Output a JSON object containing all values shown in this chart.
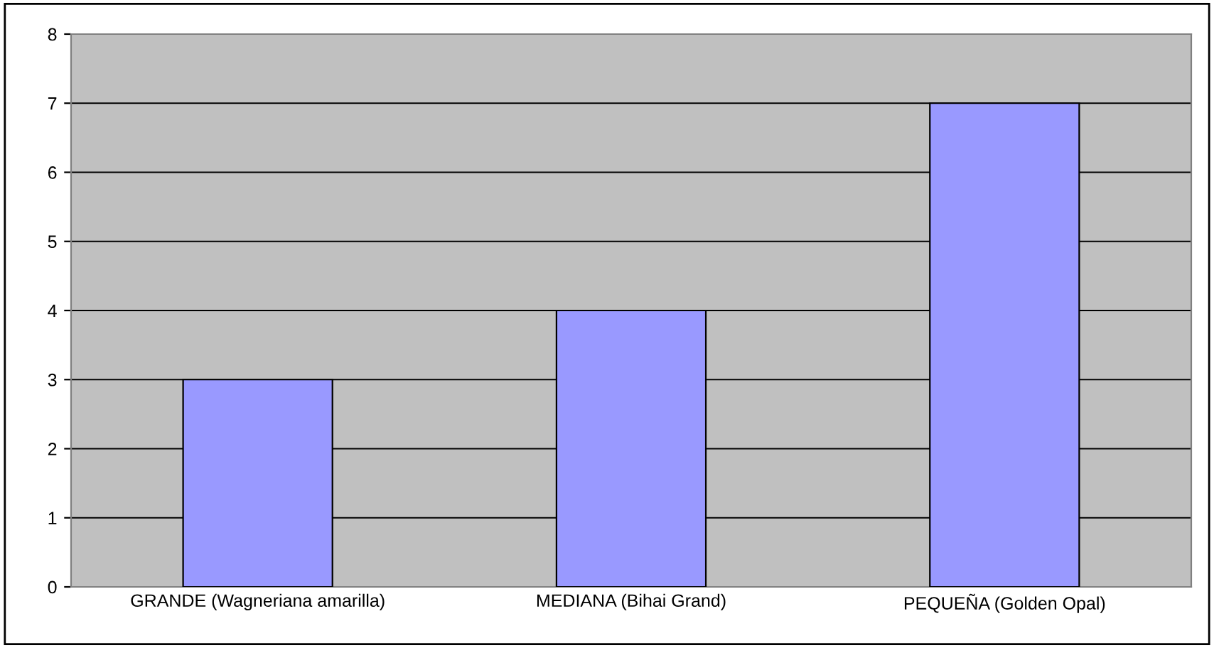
{
  "chart_data": {
    "type": "bar",
    "categories": [
      "GRANDE (Wagneriana amarilla)",
      "MEDIANA (Bihai Grand)",
      "PEQUEÑA (Golden Opal)"
    ],
    "values": [
      3,
      4,
      7
    ],
    "color": "#9999ff",
    "ylim": [
      0,
      8
    ],
    "yticks": [
      0,
      1,
      2,
      3,
      4,
      5,
      6,
      7,
      8
    ],
    "grid": "y",
    "legend": false
  }
}
